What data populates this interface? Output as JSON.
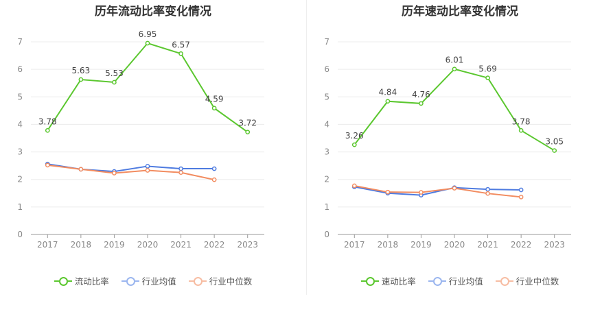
{
  "chart_data": [
    {
      "type": "line",
      "title": "历年流动比率变化情况",
      "categories": [
        "2017",
        "2018",
        "2019",
        "2020",
        "2021",
        "2022",
        "2023"
      ],
      "ylim": [
        0,
        7
      ],
      "yticks": [
        "0",
        "1",
        "2",
        "3",
        "4",
        "5",
        "6",
        "7"
      ],
      "grid": true,
      "legend_position": "bottom",
      "series": [
        {
          "name": "流动比率",
          "color": "#5bc72f",
          "values": [
            3.78,
            5.63,
            5.53,
            6.95,
            6.57,
            4.59,
            3.72
          ],
          "labels": [
            "3.78",
            "5.63",
            "5.53",
            "6.95",
            "6.57",
            "4.59",
            "3.72"
          ]
        },
        {
          "name": "行业均值",
          "color": "#4e7be0",
          "values": [
            2.56,
            2.37,
            2.29,
            2.48,
            2.39,
            2.39,
            null
          ]
        },
        {
          "name": "行业中位数",
          "color": "#f28c60",
          "values": [
            2.52,
            2.37,
            2.23,
            2.33,
            2.25,
            1.99,
            null
          ]
        }
      ]
    },
    {
      "type": "line",
      "title": "历年速动比率变化情况",
      "categories": [
        "2017",
        "2018",
        "2019",
        "2020",
        "2021",
        "2022",
        "2023"
      ],
      "ylim": [
        0,
        7
      ],
      "yticks": [
        "0",
        "1",
        "2",
        "3",
        "4",
        "5",
        "6",
        "7"
      ],
      "grid": true,
      "legend_position": "bottom",
      "series": [
        {
          "name": "速动比率",
          "color": "#5bc72f",
          "values": [
            3.26,
            4.84,
            4.76,
            6.01,
            5.69,
            3.78,
            3.05
          ],
          "labels": [
            "3.26",
            "4.84",
            "4.76",
            "6.01",
            "5.69",
            "3.78",
            "3.05"
          ]
        },
        {
          "name": "行业均值",
          "color": "#4e7be0",
          "values": [
            1.73,
            1.5,
            1.43,
            1.7,
            1.64,
            1.62,
            null
          ]
        },
        {
          "name": "行业中位数",
          "color": "#f28c60",
          "values": [
            1.77,
            1.54,
            1.53,
            1.68,
            1.49,
            1.36,
            null
          ]
        }
      ]
    }
  ]
}
